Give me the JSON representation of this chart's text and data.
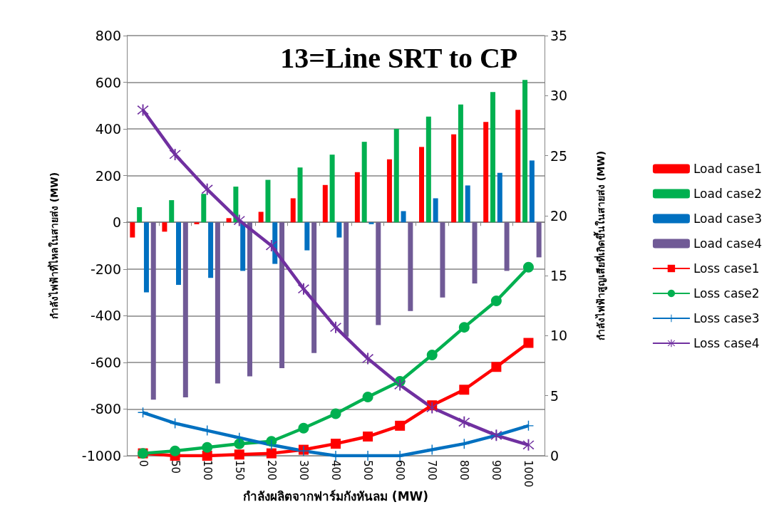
{
  "chart_data": {
    "type": "bar",
    "title": "13=Line SRT to CP",
    "xlabel": "กำลังผลิตจากฟาร์มกังหันลม (MW)",
    "ylabel": "กำลังไฟฟ้าที่ไหลในสายส่ง (MW)",
    "y2label": "กำลังไฟฟ้าสูญเสียที่เกิดขึ้นในสายส่ง (MW)",
    "categories": [
      "0",
      "50",
      "100",
      "150",
      "200",
      "300",
      "400",
      "500",
      "600",
      "700",
      "800",
      "900",
      "1000"
    ],
    "series": [
      {
        "name": "Load case1",
        "color": "#ff0000",
        "values": [
          -65,
          -40,
          -8,
          18,
          45,
          103,
          160,
          215,
          270,
          323,
          377,
          430,
          482
        ]
      },
      {
        "name": "Load case2",
        "color": "#00b050",
        "values": [
          65,
          95,
          122,
          153,
          182,
          235,
          290,
          345,
          400,
          453,
          505,
          558,
          610
        ]
      },
      {
        "name": "Load case3",
        "color": "#0070c0",
        "values": [
          -300,
          -268,
          -238,
          -208,
          -178,
          -120,
          -65,
          -8,
          48,
          103,
          158,
          212,
          265
        ]
      },
      {
        "name": "Load case4",
        "color": "#705a96",
        "values": [
          -760,
          -750,
          -690,
          -660,
          -625,
          -560,
          -490,
          -440,
          -380,
          -322,
          -262,
          -208,
          -150
        ]
      },
      {
        "name": "Loss case1",
        "type": "line",
        "axis": "y2",
        "marker": "square",
        "color": "#ff0000",
        "values": [
          0.2,
          0,
          0,
          0.1,
          0.2,
          0.5,
          1.0,
          1.6,
          2.5,
          4.2,
          5.5,
          7.4,
          9.4
        ]
      },
      {
        "name": "Loss case2",
        "type": "line",
        "axis": "y2",
        "marker": "circle",
        "color": "#00b050",
        "values": [
          0.2,
          0.4,
          0.7,
          1.0,
          1.2,
          2.3,
          3.5,
          4.9,
          6.2,
          8.4,
          10.7,
          12.9,
          15.7
        ]
      },
      {
        "name": "Loss case3",
        "type": "line",
        "axis": "y2",
        "marker": "cross",
        "color": "#0070c0",
        "values": [
          3.6,
          2.7,
          2.1,
          1.5,
          0.9,
          0.4,
          0,
          0,
          0,
          0.5,
          1.0,
          1.7,
          2.5
        ]
      },
      {
        "name": "Loss case4",
        "type": "line",
        "axis": "y2",
        "marker": "star",
        "color": "#7030a0",
        "values": [
          28.8,
          25.1,
          22.2,
          19.6,
          17.5,
          13.9,
          10.7,
          8.1,
          5.9,
          4.0,
          2.8,
          1.7,
          0.9
        ]
      }
    ],
    "ylim": [
      -1000,
      800
    ],
    "yticks": [
      -1000,
      -800,
      -600,
      -400,
      -200,
      0,
      200,
      400,
      600,
      800
    ],
    "y2lim": [
      0,
      35
    ],
    "y2ticks": [
      0,
      5,
      10,
      15,
      20,
      25,
      30,
      35
    ],
    "grid": "y",
    "legend": "right"
  }
}
